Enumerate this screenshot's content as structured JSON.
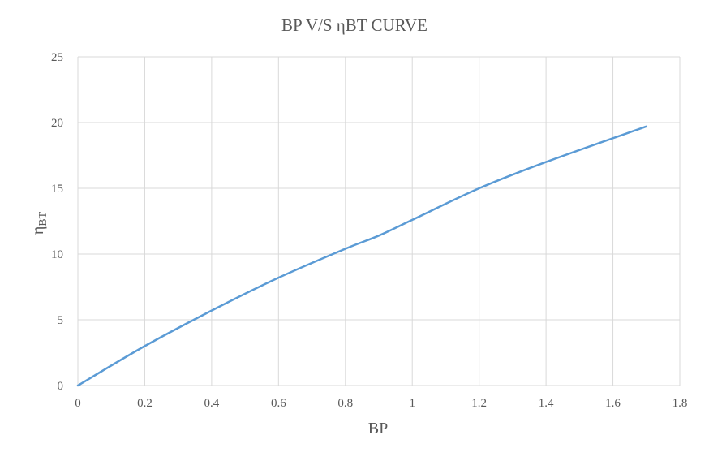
{
  "chart_data": {
    "type": "line",
    "title": "BP V/S ηBT CURVE",
    "xlabel": "BP",
    "ylabel": "η",
    "ylabel_sub": "BT",
    "xlim": [
      0,
      1.8
    ],
    "ylim": [
      0,
      25
    ],
    "x_ticks": [
      0,
      0.2,
      0.4,
      0.6,
      0.8,
      1,
      1.2,
      1.4,
      1.6,
      1.8
    ],
    "x_tick_labels": [
      "0",
      "0.2",
      "0.4",
      "0.6",
      "0.8",
      "1",
      "1.2",
      "1.4",
      "1.6",
      "1.8"
    ],
    "y_ticks": [
      0,
      5,
      10,
      15,
      20,
      25
    ],
    "y_tick_labels": [
      "0",
      "5",
      "10",
      "15",
      "20",
      "25"
    ],
    "grid": true,
    "legend": "none",
    "series": [
      {
        "color": "#5b9bd5",
        "x": [
          0,
          0.2,
          0.4,
          0.6,
          0.8,
          0.9,
          1.0,
          1.2,
          1.4,
          1.7
        ],
        "y": [
          0,
          3.0,
          5.7,
          8.2,
          10.4,
          11.4,
          12.6,
          15.0,
          17.0,
          19.7
        ]
      }
    ]
  }
}
